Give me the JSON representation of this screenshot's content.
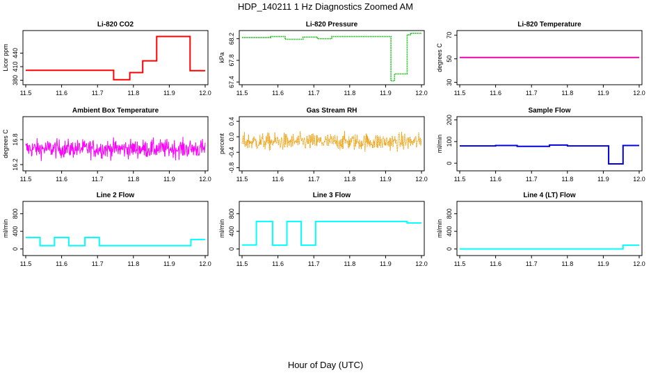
{
  "page": {
    "title": "HDP_140211  1 Hz Diagnostics Zoomed AM",
    "x_axis_label": "Hour of Day (UTC)"
  },
  "chart_data": [
    {
      "type": "line",
      "title": "Li-820 CO2",
      "ylabel": "Licor ppm",
      "color": "#ff0000",
      "xlim": [
        11.5,
        12.0
      ],
      "ylim": [
        370,
        490
      ],
      "x_ticks": [
        11.5,
        11.6,
        11.7,
        11.8,
        11.9,
        12.0
      ],
      "x_tick_labels": [
        "11.5",
        "11.6",
        "11.7",
        "11.8",
        "11.9",
        "12.0"
      ],
      "y_ticks": [
        380,
        410,
        440
      ],
      "y_tick_labels": [
        "380",
        "410",
        "440"
      ],
      "segments": [
        [
          11.5,
          11.745,
          402
        ],
        [
          11.745,
          11.79,
          381
        ],
        [
          11.79,
          11.826,
          397
        ],
        [
          11.826,
          11.865,
          423
        ],
        [
          11.865,
          11.958,
          477
        ],
        [
          11.958,
          12.0,
          401
        ]
      ],
      "noise": 1.6,
      "style": "step"
    },
    {
      "type": "line",
      "title": "Li-820 Pressure",
      "ylabel": "kPa",
      "color": "#00bb00",
      "xlim": [
        11.5,
        12.0
      ],
      "ylim": [
        67.35,
        68.35
      ],
      "x_ticks": [
        11.5,
        11.6,
        11.7,
        11.8,
        11.9,
        12.0
      ],
      "x_tick_labels": [
        "11.5",
        "11.6",
        "11.7",
        "11.8",
        "11.9",
        "12.0"
      ],
      "y_ticks": [
        67.4,
        67.8,
        68.2
      ],
      "y_tick_labels": [
        "67.4",
        "67.8",
        "68.2"
      ],
      "segments": [
        [
          11.5,
          11.58,
          68.22
        ],
        [
          11.58,
          11.62,
          68.24
        ],
        [
          11.62,
          11.67,
          68.19
        ],
        [
          11.67,
          11.71,
          68.23
        ],
        [
          11.71,
          11.75,
          68.2
        ],
        [
          11.75,
          11.915,
          68.24
        ],
        [
          11.915,
          11.925,
          67.42
        ],
        [
          11.925,
          11.96,
          67.55
        ],
        [
          11.96,
          11.97,
          68.27
        ],
        [
          11.97,
          12.0,
          68.3
        ]
      ],
      "noise": 0.006,
      "style": "dots"
    },
    {
      "type": "line",
      "title": "Li-820 Temperature",
      "ylabel": "degrees C",
      "color": "#ee00aa",
      "xlim": [
        11.5,
        12.0
      ],
      "ylim": [
        28,
        74
      ],
      "x_ticks": [
        11.5,
        11.6,
        11.7,
        11.8,
        11.9,
        12.0
      ],
      "x_tick_labels": [
        "11.5",
        "11.6",
        "11.7",
        "11.8",
        "11.9",
        "12.0"
      ],
      "y_ticks": [
        30,
        50,
        70
      ],
      "y_tick_labels": [
        "30",
        "50",
        "70"
      ],
      "segments": [
        [
          11.5,
          12.0,
          51.2
        ]
      ],
      "noise": 0.0,
      "style": "step"
    },
    {
      "type": "line",
      "title": "Ambient Box Temperature",
      "ylabel": "degrees C",
      "color": "#ff00ff",
      "xlim": [
        11.5,
        12.0
      ],
      "ylim": [
        16.05,
        17.35
      ],
      "x_ticks": [
        11.5,
        11.6,
        11.7,
        11.8,
        11.9,
        12.0
      ],
      "x_tick_labels": [
        "11.5",
        "11.6",
        "11.7",
        "11.8",
        "11.9",
        "12.0"
      ],
      "y_ticks": [
        16.2,
        16.8
      ],
      "y_tick_labels": [
        "16.2",
        "16.8"
      ],
      "segments": [
        [
          11.5,
          12.0,
          16.58
        ]
      ],
      "noise": 0.22,
      "style": "noise"
    },
    {
      "type": "scatter",
      "title": "Gas Stream RH",
      "ylabel": "percent",
      "color": "#ee9900",
      "xlim": [
        11.5,
        12.0
      ],
      "ylim": [
        -0.88,
        0.52
      ],
      "x_ticks": [
        11.5,
        11.6,
        11.7,
        11.8,
        11.9,
        12.0
      ],
      "x_tick_labels": [
        "11.5",
        "11.6",
        "11.7",
        "11.8",
        "11.9",
        "12.0"
      ],
      "y_ticks": [
        -0.8,
        -0.4,
        0.0,
        0.4
      ],
      "y_tick_labels": [
        "-0.8",
        "-0.4",
        "0.0",
        "0.4"
      ],
      "segments": [
        [
          11.5,
          12.0,
          -0.13
        ]
      ],
      "noise": 0.22,
      "style": "noise"
    },
    {
      "type": "line",
      "title": "Sample Flow",
      "ylabel": "ml/min",
      "color": "#0000dd",
      "xlim": [
        11.5,
        12.0
      ],
      "ylim": [
        -35,
        215
      ],
      "x_ticks": [
        11.5,
        11.6,
        11.7,
        11.8,
        11.9,
        12.0
      ],
      "x_tick_labels": [
        "11.5",
        "11.6",
        "11.7",
        "11.8",
        "11.9",
        "12.0"
      ],
      "y_ticks": [
        0,
        100,
        200
      ],
      "y_tick_labels": [
        "0",
        "100",
        "200"
      ],
      "segments": [
        [
          11.5,
          11.6,
          80
        ],
        [
          11.6,
          11.66,
          82
        ],
        [
          11.66,
          11.75,
          78
        ],
        [
          11.75,
          11.8,
          84
        ],
        [
          11.8,
          11.915,
          80
        ],
        [
          11.915,
          11.955,
          -3
        ],
        [
          11.955,
          12.0,
          82
        ]
      ],
      "noise": 1.2,
      "style": "step"
    },
    {
      "type": "line",
      "title": "Line 2 Flow",
      "ylabel": "ml/min",
      "color": "#00ffff",
      "xlim": [
        11.5,
        12.0
      ],
      "ylim": [
        -150,
        1080
      ],
      "x_ticks": [
        11.5,
        11.6,
        11.7,
        11.8,
        11.9,
        12.0
      ],
      "x_tick_labels": [
        "11.5",
        "11.6",
        "11.7",
        "11.8",
        "11.9",
        "12.0"
      ],
      "y_ticks": [
        0,
        400,
        800
      ],
      "y_tick_labels": [
        "0",
        "400",
        "800"
      ],
      "segments": [
        [
          11.5,
          11.54,
          260
        ],
        [
          11.54,
          11.58,
          75
        ],
        [
          11.58,
          11.62,
          260
        ],
        [
          11.62,
          11.665,
          75
        ],
        [
          11.665,
          11.705,
          260
        ],
        [
          11.705,
          11.96,
          75
        ],
        [
          11.96,
          12.0,
          215
        ]
      ],
      "noise": 4,
      "style": "step"
    },
    {
      "type": "line",
      "title": "Line 3 Flow",
      "ylabel": "ml/min",
      "color": "#00ffff",
      "xlim": [
        11.5,
        12.0
      ],
      "ylim": [
        -150,
        1080
      ],
      "x_ticks": [
        11.5,
        11.6,
        11.7,
        11.8,
        11.9,
        12.0
      ],
      "x_tick_labels": [
        "11.5",
        "11.6",
        "11.7",
        "11.8",
        "11.9",
        "12.0"
      ],
      "y_ticks": [
        0,
        400,
        800
      ],
      "y_tick_labels": [
        "0",
        "400",
        "800"
      ],
      "segments": [
        [
          11.5,
          11.54,
          90
        ],
        [
          11.54,
          11.585,
          625
        ],
        [
          11.585,
          11.625,
          85
        ],
        [
          11.625,
          11.665,
          625
        ],
        [
          11.665,
          11.705,
          85
        ],
        [
          11.705,
          11.96,
          625
        ],
        [
          11.96,
          12.0,
          590
        ]
      ],
      "noise": 4,
      "style": "step"
    },
    {
      "type": "line",
      "title": "Line 4 (LT) Flow",
      "ylabel": "ml/min",
      "color": "#00ffff",
      "xlim": [
        11.5,
        12.0
      ],
      "ylim": [
        -150,
        1080
      ],
      "x_ticks": [
        11.5,
        11.6,
        11.7,
        11.8,
        11.9,
        12.0
      ],
      "x_tick_labels": [
        "11.5",
        "11.6",
        "11.7",
        "11.8",
        "11.9",
        "12.0"
      ],
      "y_ticks": [
        0,
        400,
        800
      ],
      "y_tick_labels": [
        "0",
        "400",
        "800"
      ],
      "segments": [
        [
          11.5,
          11.955,
          0
        ],
        [
          11.955,
          12.0,
          85
        ]
      ],
      "noise": 2,
      "style": "step"
    }
  ]
}
